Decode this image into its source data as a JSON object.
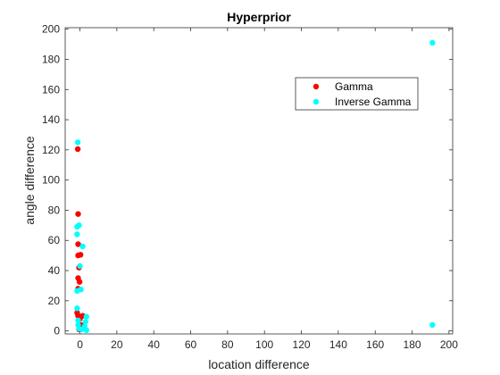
{
  "chart_data": {
    "type": "scatter",
    "title": "Hyperprior",
    "xlabel": "location difference",
    "ylabel": "angle difference",
    "xlim": [
      -8,
      202
    ],
    "ylim": [
      -2,
      201
    ],
    "xticks": [
      0,
      20,
      40,
      60,
      80,
      100,
      120,
      140,
      160,
      180,
      200
    ],
    "yticks": [
      0,
      20,
      40,
      60,
      80,
      100,
      120,
      140,
      160,
      180,
      200
    ],
    "grid": false,
    "legend_position": "top-right",
    "series": [
      {
        "name": "Gamma",
        "color": "#ff0000",
        "points": [
          [
            -1.2,
            120.5
          ],
          [
            -1.0,
            77.5
          ],
          [
            -1.0,
            57.5
          ],
          [
            -1.0,
            50.0
          ],
          [
            0.3,
            50.5
          ],
          [
            -0.5,
            42.0
          ],
          [
            -1.0,
            35.0
          ],
          [
            -0.2,
            32.5
          ],
          [
            -1.0,
            28.0
          ],
          [
            -1.5,
            12.0
          ],
          [
            -1.0,
            10.0
          ],
          [
            1.5,
            10.0
          ],
          [
            0.0,
            8.0
          ],
          [
            0.5,
            4.0
          ],
          [
            -0.5,
            1.0
          ]
        ]
      },
      {
        "name": "Inverse Gamma",
        "color": "#00ffff",
        "points": [
          [
            -1.2,
            125.0
          ],
          [
            -0.5,
            70.0
          ],
          [
            -1.5,
            69.0
          ],
          [
            -1.5,
            64.0
          ],
          [
            1.5,
            56.0
          ],
          [
            0.0,
            43.0
          ],
          [
            0.5,
            27.5
          ],
          [
            -1.5,
            26.5
          ],
          [
            -1.5,
            15.0
          ],
          [
            3.5,
            9.5
          ],
          [
            -1.0,
            7.0
          ],
          [
            3.0,
            6.0
          ],
          [
            -1.0,
            4.0
          ],
          [
            2.5,
            3.0
          ],
          [
            -0.5,
            1.5
          ],
          [
            1.0,
            1.0
          ],
          [
            3.5,
            0.5
          ],
          [
            191.0,
            191.0
          ],
          [
            191.0,
            4.0
          ]
        ]
      }
    ]
  }
}
